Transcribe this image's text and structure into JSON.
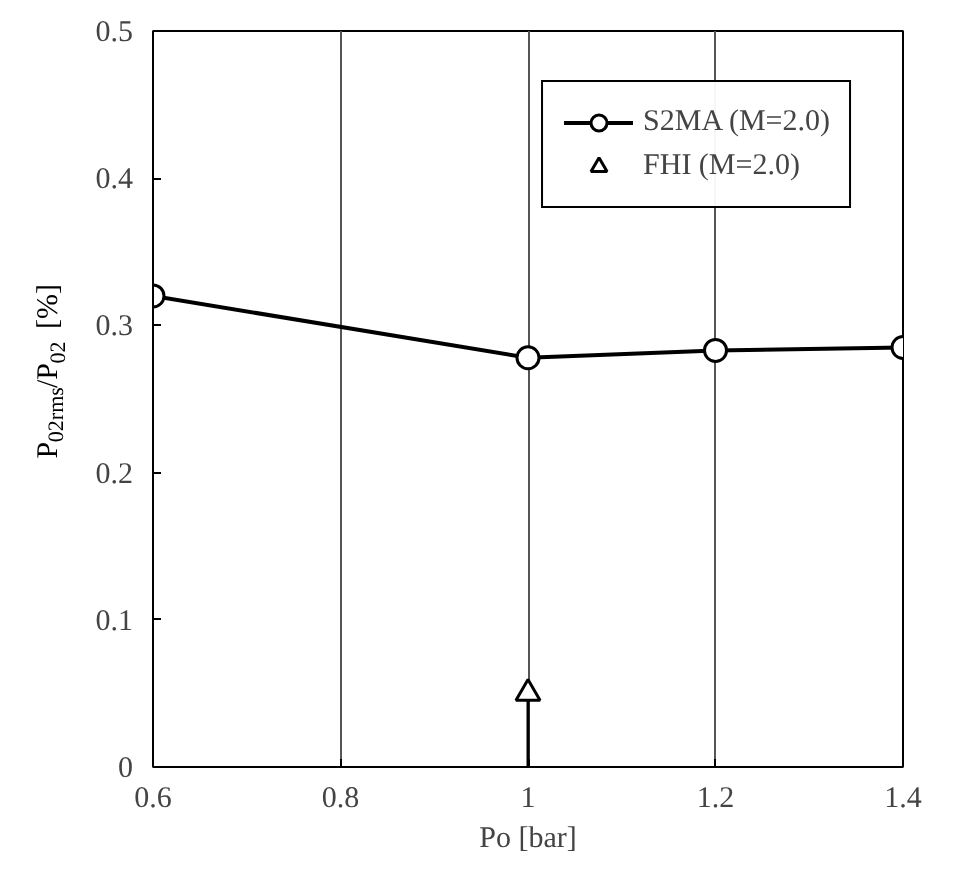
{
  "chart_data": {
    "type": "line",
    "xlabel": "Po [bar]",
    "ylabel": "P$_{02rms}$/P$_{02}$ [%]",
    "xlim": [
      0.6,
      1.4
    ],
    "xticks": [
      0.6,
      0.8,
      1,
      1.2,
      1.4
    ],
    "ylim": [
      0,
      0.5
    ],
    "yticks": [
      0,
      0.1,
      0.2,
      0.3,
      0.4,
      0.5
    ],
    "grid": "x",
    "legend": "top right",
    "marker": "circle",
    "series": [
      {
        "name": "S2MA (M=2.0)",
        "color": "#000000",
        "x": [
          0.6,
          1,
          1.2,
          1.4
        ],
        "values": [
          0.32,
          0.278,
          0.283,
          0.285
        ]
      },
      {
        "name": "FHI (M=2.0)",
        "color": "#000000",
        "type": "scatter",
        "marker": "triangle",
        "x": [
          1
        ],
        "values": [
          0.05
        ],
        "errors": [
          [
            0,
            0.05
          ]
        ]
      }
    ]
  }
}
